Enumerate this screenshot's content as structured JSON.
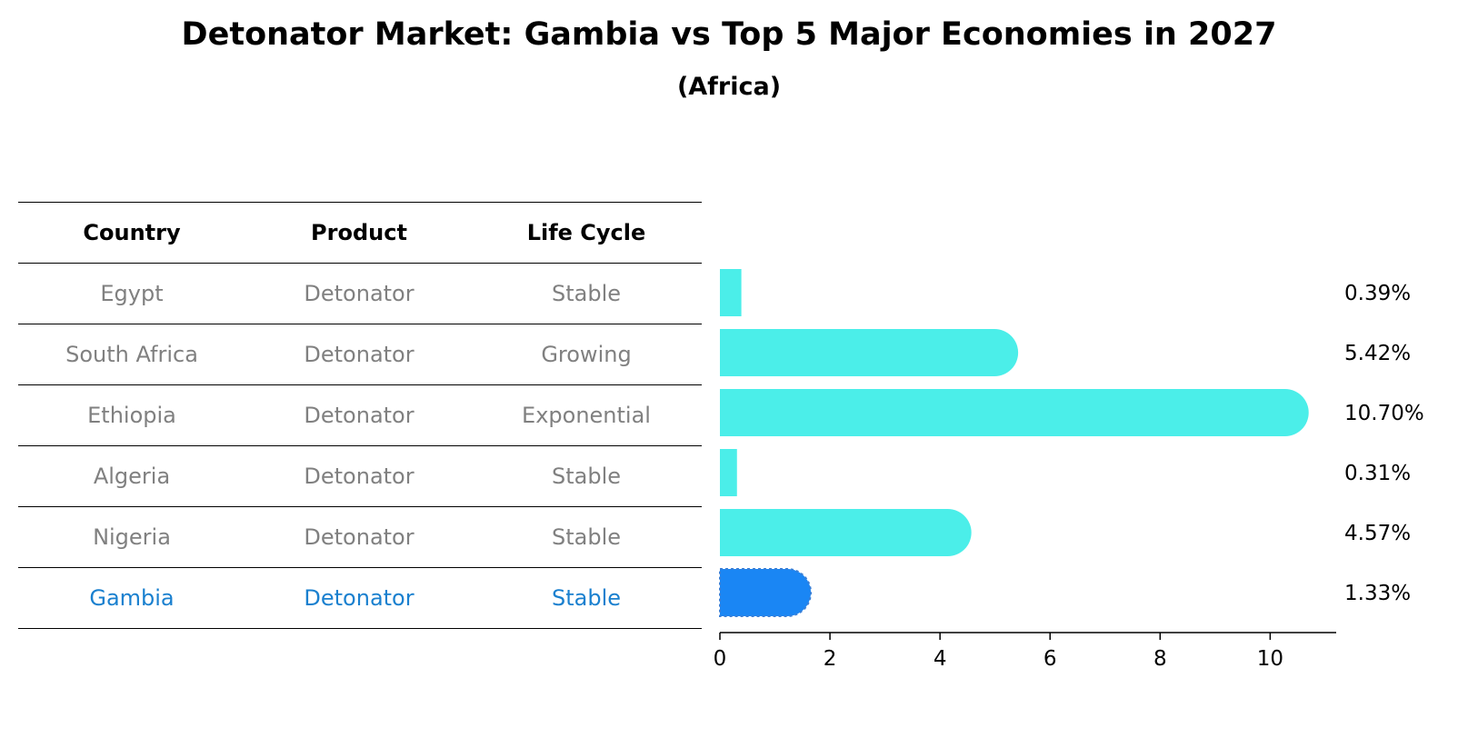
{
  "title": "Detonator Market: Gambia vs Top 5 Major Economies in 2027",
  "subtitle": "(Africa)",
  "table": {
    "headers": [
      "Country",
      "Product",
      "Life Cycle"
    ],
    "rows": [
      {
        "country": "Egypt",
        "product": "Detonator",
        "life_cycle": "Stable"
      },
      {
        "country": "South Africa",
        "product": "Detonator",
        "life_cycle": "Growing"
      },
      {
        "country": "Ethiopia",
        "product": "Detonator",
        "life_cycle": "Exponential"
      },
      {
        "country": "Algeria",
        "product": "Detonator",
        "life_cycle": "Stable"
      },
      {
        "country": "Nigeria",
        "product": "Detonator",
        "life_cycle": "Stable"
      },
      {
        "country": "Gambia",
        "product": "Detonator",
        "life_cycle": "Stable"
      }
    ]
  },
  "colors": {
    "bar": "#4beee9",
    "highlight": "#1a86f4",
    "highlight_text": "#1a80cf",
    "muted_text": "#808080"
  },
  "chart_data": {
    "type": "bar",
    "orientation": "horizontal",
    "categories": [
      "Egypt",
      "South Africa",
      "Ethiopia",
      "Algeria",
      "Nigeria",
      "Gambia"
    ],
    "values": [
      0.39,
      5.42,
      10.7,
      0.31,
      4.57,
      1.33
    ],
    "value_labels": [
      "0.39%",
      "5.42%",
      "10.70%",
      "0.31%",
      "4.57%",
      "1.33%"
    ],
    "highlight": "Gambia",
    "xlim": [
      0,
      11.2
    ],
    "xticks": [
      0,
      2,
      4,
      6,
      8,
      10
    ],
    "grid": false
  }
}
